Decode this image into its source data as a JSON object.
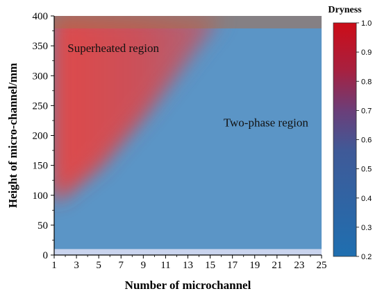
{
  "chart_data": {
    "type": "heatmap",
    "xlabel": "Number of microchannel",
    "ylabel": "Height of micro-channel/mm",
    "x_ticks": [
      "1",
      "3",
      "5",
      "7",
      "9",
      "11",
      "13",
      "15",
      "17",
      "19",
      "21",
      "23",
      "25"
    ],
    "y_ticks": [
      "0",
      "50",
      "100",
      "150",
      "200",
      "250",
      "300",
      "350",
      "400"
    ],
    "xlim": [
      1,
      25
    ],
    "ylim": [
      0,
      400
    ],
    "colorbar": {
      "title": "Dryness",
      "range": [
        0.2,
        1.0
      ],
      "ticks": [
        "0.2",
        "0.3",
        "0.4",
        "0.5",
        "0.6",
        "0.7",
        "0.8",
        "0.9",
        "1.0"
      ],
      "colors": {
        "low": "#1f6fb0",
        "mid": "#5a4a8a",
        "high": "#c8101e"
      }
    },
    "annotations": [
      {
        "text": "Superheated region",
        "x": 2.2,
        "y": 340
      },
      {
        "text": "Two-phase region",
        "x": 16.2,
        "y": 215
      }
    ],
    "regions": {
      "superheated_boundary": [
        [
          1,
          90
        ],
        [
          5,
          150
        ],
        [
          9,
          235
        ],
        [
          13,
          330
        ],
        [
          16,
          400
        ]
      ],
      "two_phase_field_dryness": 0.28
    }
  }
}
